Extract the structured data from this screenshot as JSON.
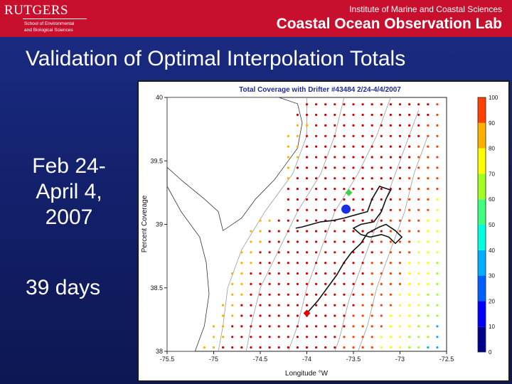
{
  "header": {
    "logo_text": "RUTGERS",
    "school_line1": "School of Environmental",
    "school_line2": "and Biological Sciences",
    "institute": "Institute of Marine and Coastal Sciences",
    "lab": "Coastal Ocean Observation Lab"
  },
  "slide": {
    "title": "Validation of Optimal Interpolation Totals",
    "date_line1": "Feb 24-",
    "date_line2": "April 4,",
    "date_line3": "2007",
    "duration": "39 days"
  },
  "chart_data": {
    "type": "heatmap",
    "title": "Total Coverage with Drifter #43484  2/24-4/4/2007",
    "xlabel": "Longitude °W",
    "ylabel": "",
    "colorbar_label": "Percent Coverage",
    "x_ticks": [
      "-75.5",
      "-75",
      "-74.5",
      "-74",
      "-73.5",
      "-73",
      "-72.5"
    ],
    "y_ticks": [
      "40",
      "39.5",
      "39",
      "38.5",
      "38"
    ],
    "xlim": [
      -75.5,
      -72.5
    ],
    "ylim": [
      38,
      40
    ],
    "colorbar_ticks": [
      "0",
      "10",
      "20",
      "30",
      "40",
      "50",
      "60",
      "70",
      "80",
      "90",
      "100"
    ],
    "colorbar_colors": [
      "#00008f",
      "#0000ff",
      "#0060ff",
      "#00b0ff",
      "#00ffe0",
      "#40ff80",
      "#a0ff20",
      "#ffff00",
      "#ffb000",
      "#ff4000",
      "#d00000"
    ],
    "drifter": {
      "start": [
        -74.0,
        38.3
      ],
      "end_marker": [
        -73.55,
        39.25
      ],
      "current": [
        -73.58,
        39.12
      ],
      "path": [
        [
          -74.0,
          38.3
        ],
        [
          -73.88,
          38.4
        ],
        [
          -73.78,
          38.5
        ],
        [
          -73.68,
          38.6
        ],
        [
          -73.6,
          38.7
        ],
        [
          -73.52,
          38.78
        ],
        [
          -73.42,
          38.85
        ],
        [
          -73.35,
          38.93
        ],
        [
          -73.22,
          38.98
        ],
        [
          -73.15,
          39.0
        ],
        [
          -73.05,
          38.95
        ],
        [
          -72.98,
          38.9
        ],
        [
          -73.05,
          38.85
        ],
        [
          -73.12,
          38.9
        ],
        [
          -73.2,
          38.92
        ],
        [
          -73.32,
          38.9
        ],
        [
          -73.42,
          38.92
        ],
        [
          -73.5,
          38.97
        ],
        [
          -73.42,
          39.0
        ],
        [
          -73.28,
          39.02
        ],
        [
          -73.2,
          39.1
        ],
        [
          -73.15,
          39.2
        ],
        [
          -73.1,
          39.27
        ],
        [
          -73.22,
          39.3
        ],
        [
          -73.3,
          39.2
        ],
        [
          -73.35,
          39.1
        ],
        [
          -73.45,
          39.08
        ],
        [
          -73.6,
          39.05
        ],
        [
          -73.72,
          39.03
        ],
        [
          -73.85,
          39.02
        ],
        [
          -73.95,
          39.0
        ],
        [
          -74.05,
          38.98
        ],
        [
          -74.12,
          38.97
        ]
      ]
    }
  },
  "colors": {
    "header_red": "#c8102e",
    "background_blue": "#1b2d86",
    "land": "#ffffff",
    "ocean_grid": "#e0e0e0"
  }
}
